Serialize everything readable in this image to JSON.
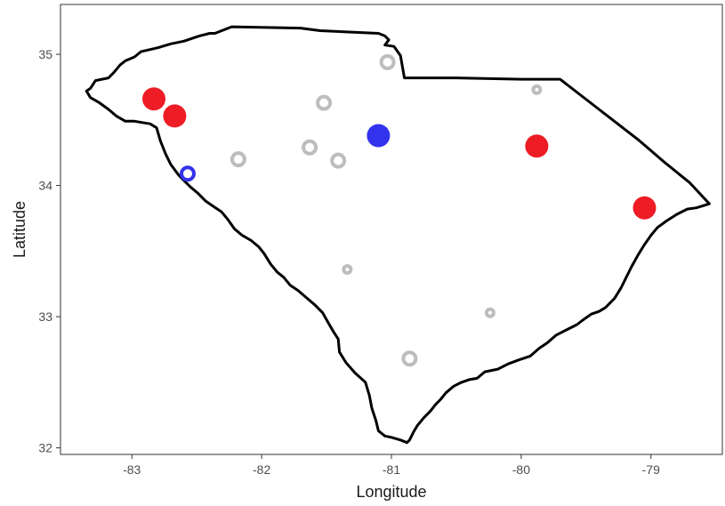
{
  "chart_data": {
    "type": "scatter",
    "xlabel": "Longitude",
    "ylabel": "Latitude",
    "xlim": [
      -83.55,
      -78.45
    ],
    "ylim": [
      31.95,
      35.38
    ],
    "x_ticks": [
      -83,
      -82,
      -81,
      -80,
      -79
    ],
    "y_ticks": [
      32,
      33,
      34,
      35
    ],
    "x_tick_labels": [
      "-83",
      "-82",
      "-81",
      "-80",
      "-79"
    ],
    "y_tick_labels": [
      "32",
      "33",
      "34",
      "35"
    ],
    "grid": false,
    "legend": "none",
    "series": [
      {
        "color": "#ee1c25",
        "fill": "filled",
        "points": [
          {
            "lon": -82.83,
            "lat": 34.66,
            "size": "large"
          },
          {
            "lon": -82.67,
            "lat": 34.53,
            "size": "large"
          },
          {
            "lon": -79.88,
            "lat": 34.3,
            "size": "large"
          },
          {
            "lon": -79.05,
            "lat": 33.83,
            "size": "large"
          }
        ]
      },
      {
        "color": "#3333ee",
        "fill": "filled",
        "points": [
          {
            "lon": -81.1,
            "lat": 34.38,
            "size": "large"
          }
        ]
      },
      {
        "color": "#3333ee",
        "fill": "hollow",
        "points": [
          {
            "lon": -82.57,
            "lat": 34.09,
            "size": "medium"
          }
        ]
      },
      {
        "color": "#bdbdbd",
        "fill": "hollow",
        "points": [
          {
            "lon": -81.03,
            "lat": 34.94,
            "size": "medium"
          },
          {
            "lon": -79.88,
            "lat": 34.73,
            "size": "small"
          },
          {
            "lon": -81.52,
            "lat": 34.63,
            "size": "medium"
          },
          {
            "lon": -81.63,
            "lat": 34.29,
            "size": "medium"
          },
          {
            "lon": -81.41,
            "lat": 34.19,
            "size": "medium"
          },
          {
            "lon": -82.18,
            "lat": 34.2,
            "size": "medium"
          },
          {
            "lon": -81.34,
            "lat": 33.36,
            "size": "small"
          },
          {
            "lon": -80.24,
            "lat": 33.03,
            "size": "small"
          },
          {
            "lon": -80.86,
            "lat": 32.68,
            "size": "medium"
          }
        ]
      }
    ],
    "outline": {
      "name": "South Carolina",
      "color": "#000000",
      "coords": [
        [
          -83.35,
          34.72
        ],
        [
          -83.32,
          34.74
        ],
        [
          -83.28,
          34.8
        ],
        [
          -83.18,
          34.82
        ],
        [
          -83.14,
          34.86
        ],
        [
          -83.09,
          34.92
        ],
        [
          -83.05,
          34.95
        ],
        [
          -82.98,
          34.98
        ],
        [
          -82.93,
          35.02
        ],
        [
          -82.8,
          35.05
        ],
        [
          -82.7,
          35.08
        ],
        [
          -82.6,
          35.1
        ],
        [
          -82.48,
          35.14
        ],
        [
          -82.4,
          35.16
        ],
        [
          -82.36,
          35.16
        ],
        [
          -82.23,
          35.21
        ],
        [
          -81.7,
          35.2
        ],
        [
          -81.55,
          35.18
        ],
        [
          -81.33,
          35.17
        ],
        [
          -81.1,
          35.16
        ],
        [
          -81.05,
          35.14
        ],
        [
          -81.02,
          35.11
        ],
        [
          -81.05,
          35.07
        ],
        [
          -80.98,
          35.06
        ],
        [
          -80.93,
          34.99
        ],
        [
          -80.9,
          34.82
        ],
        [
          -80.5,
          34.82
        ],
        [
          -80.0,
          34.81
        ],
        [
          -79.7,
          34.81
        ],
        [
          -79.4,
          34.58
        ],
        [
          -79.1,
          34.35
        ],
        [
          -78.9,
          34.18
        ],
        [
          -78.7,
          34.02
        ],
        [
          -78.55,
          33.86
        ],
        [
          -78.65,
          33.83
        ],
        [
          -78.72,
          33.82
        ],
        [
          -78.8,
          33.78
        ],
        [
          -78.88,
          33.73
        ],
        [
          -78.95,
          33.68
        ],
        [
          -79.0,
          33.62
        ],
        [
          -79.05,
          33.55
        ],
        [
          -79.1,
          33.47
        ],
        [
          -79.15,
          33.38
        ],
        [
          -79.19,
          33.3
        ],
        [
          -79.23,
          33.22
        ],
        [
          -79.28,
          33.14
        ],
        [
          -79.35,
          33.07
        ],
        [
          -79.4,
          33.04
        ],
        [
          -79.46,
          33.02
        ],
        [
          -79.53,
          32.97
        ],
        [
          -79.57,
          32.94
        ],
        [
          -79.65,
          32.9
        ],
        [
          -79.73,
          32.86
        ],
        [
          -79.8,
          32.8
        ],
        [
          -79.86,
          32.76
        ],
        [
          -79.93,
          32.7
        ],
        [
          -80.02,
          32.67
        ],
        [
          -80.1,
          32.64
        ],
        [
          -80.18,
          32.6
        ],
        [
          -80.28,
          32.58
        ],
        [
          -80.34,
          32.53
        ],
        [
          -80.4,
          32.52
        ],
        [
          -80.46,
          32.5
        ],
        [
          -80.52,
          32.47
        ],
        [
          -80.58,
          32.42
        ],
        [
          -80.62,
          32.37
        ],
        [
          -80.66,
          32.33
        ],
        [
          -80.7,
          32.28
        ],
        [
          -80.75,
          32.23
        ],
        [
          -80.8,
          32.17
        ],
        [
          -80.83,
          32.12
        ],
        [
          -80.86,
          32.06
        ],
        [
          -80.88,
          32.04
        ],
        [
          -80.93,
          32.06
        ],
        [
          -81.0,
          32.08
        ],
        [
          -81.05,
          32.09
        ],
        [
          -81.1,
          32.13
        ],
        [
          -81.12,
          32.21
        ],
        [
          -81.15,
          32.3
        ],
        [
          -81.17,
          32.4
        ],
        [
          -81.2,
          32.5
        ],
        [
          -81.28,
          32.57
        ],
        [
          -81.35,
          32.65
        ],
        [
          -81.4,
          32.73
        ],
        [
          -81.41,
          32.83
        ],
        [
          -81.45,
          32.89
        ],
        [
          -81.49,
          32.96
        ],
        [
          -81.53,
          33.03
        ],
        [
          -81.59,
          33.09
        ],
        [
          -81.65,
          33.14
        ],
        [
          -81.72,
          33.2
        ],
        [
          -81.78,
          33.24
        ],
        [
          -81.83,
          33.3
        ],
        [
          -81.88,
          33.34
        ],
        [
          -81.93,
          33.4
        ],
        [
          -81.98,
          33.48
        ],
        [
          -82.02,
          33.53
        ],
        [
          -82.08,
          33.58
        ],
        [
          -82.15,
          33.62
        ],
        [
          -82.21,
          33.67
        ],
        [
          -82.26,
          33.74
        ],
        [
          -82.31,
          33.8
        ],
        [
          -82.37,
          33.84
        ],
        [
          -82.43,
          33.88
        ],
        [
          -82.49,
          33.94
        ],
        [
          -82.55,
          33.99
        ],
        [
          -82.59,
          34.03
        ],
        [
          -82.64,
          34.08
        ],
        [
          -82.7,
          34.16
        ],
        [
          -82.74,
          34.24
        ],
        [
          -82.78,
          34.34
        ],
        [
          -82.81,
          34.44
        ],
        [
          -82.86,
          34.47
        ],
        [
          -82.92,
          34.48
        ],
        [
          -82.98,
          34.49
        ],
        [
          -83.05,
          34.49
        ],
        [
          -83.12,
          34.53
        ],
        [
          -83.18,
          34.58
        ],
        [
          -83.25,
          34.63
        ],
        [
          -83.32,
          34.67
        ],
        [
          -83.35,
          34.72
        ]
      ]
    }
  }
}
